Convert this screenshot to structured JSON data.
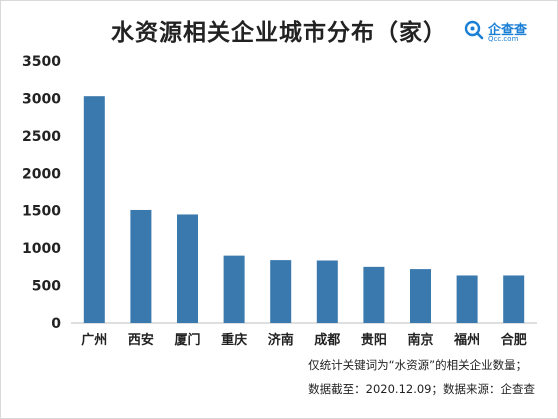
{
  "title": "水资源相关企业城市分布（家）",
  "logo": {
    "name": "企查查",
    "domain": "Qcc.com",
    "color": "#1b7fd6"
  },
  "notes": {
    "line1": "仅统计关键词为“水资源”的相关企业数量；",
    "line2": "数据截至：2020.12.09；数据来源：企查查"
  },
  "chart_data": {
    "type": "bar",
    "categories": [
      "广州",
      "西安",
      "厦门",
      "重庆",
      "济南",
      "成都",
      "贵阳",
      "南京",
      "福州",
      "合肥"
    ],
    "values": [
      3030,
      1510,
      1450,
      900,
      840,
      835,
      750,
      720,
      635,
      635
    ],
    "y_ticks": [
      0,
      500,
      1000,
      1500,
      2000,
      2500,
      3000,
      3500
    ],
    "ylim": [
      0,
      3500
    ],
    "bar_color": "#3a79ad",
    "grid": false,
    "legend": false
  }
}
